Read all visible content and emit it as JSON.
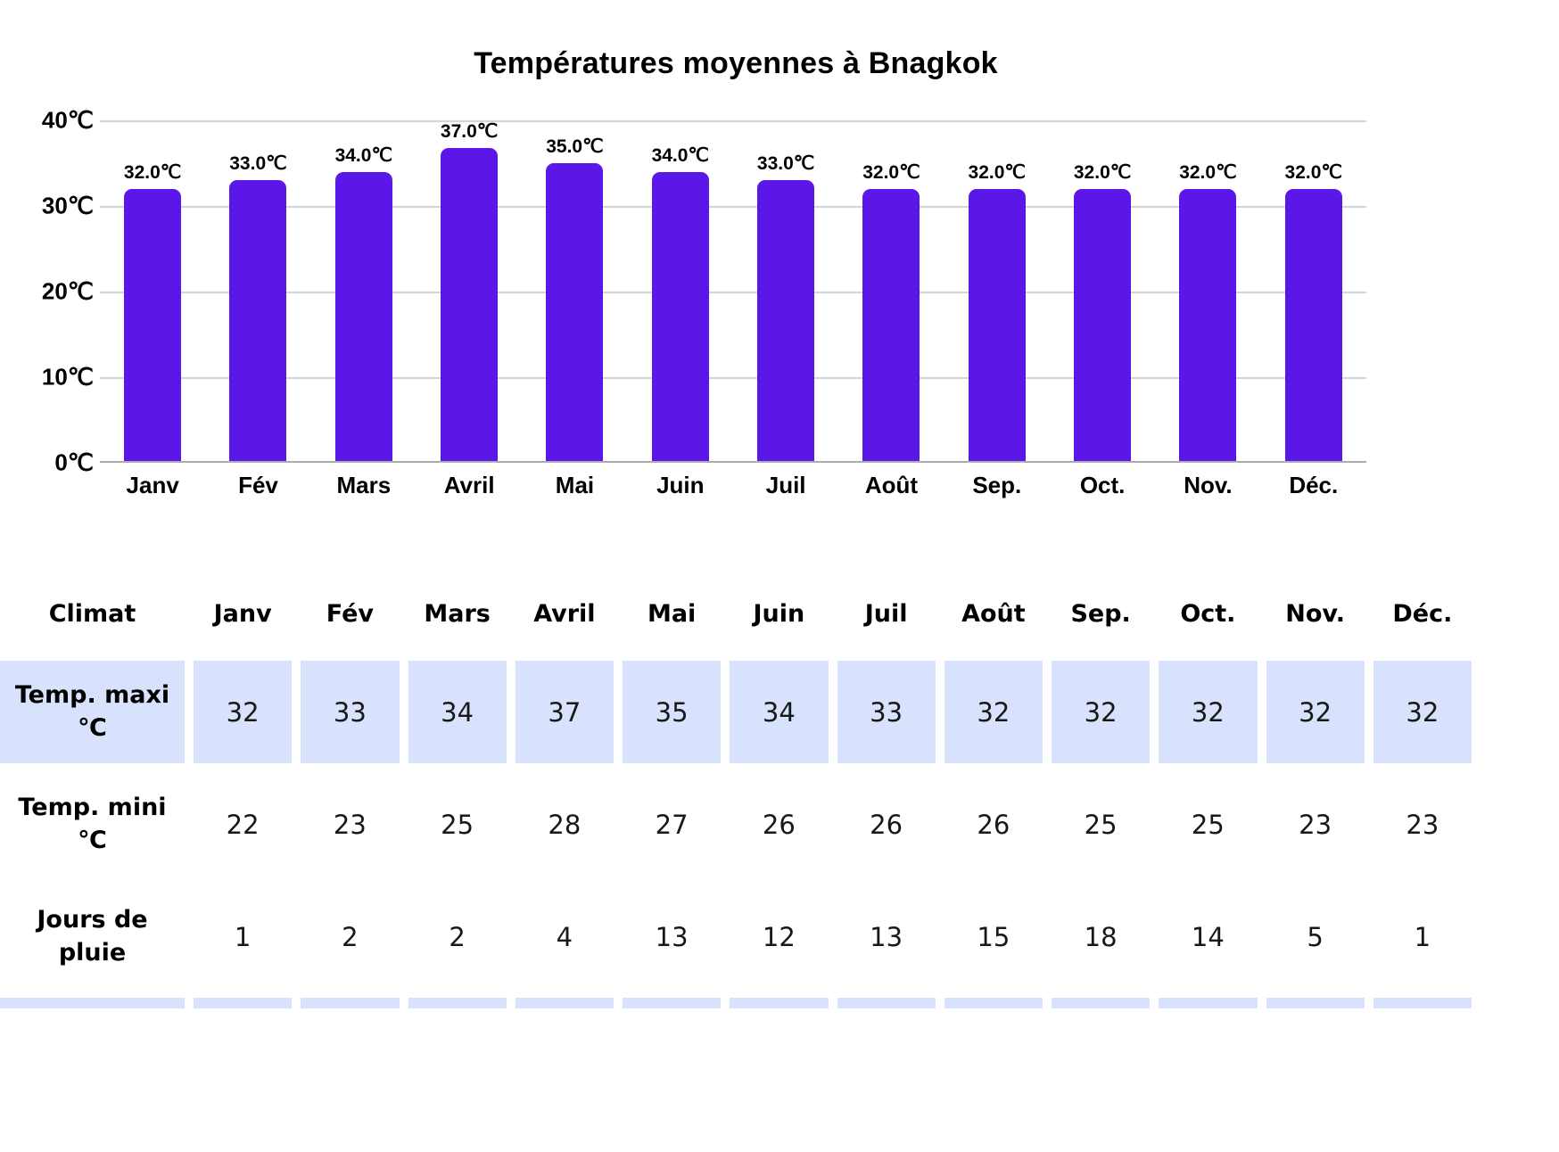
{
  "chart_data": {
    "type": "bar",
    "title": "Températures moyennes à Bnagkok",
    "categories": [
      "Janv",
      "Fév",
      "Mars",
      "Avril",
      "Mai",
      "Juin",
      "Juil",
      "Août",
      "Sep.",
      "Oct.",
      "Nov.",
      "Déc."
    ],
    "values": [
      32,
      33,
      34,
      37,
      35,
      34,
      33,
      32,
      32,
      32,
      32,
      32
    ],
    "bar_labels": [
      "32.0℃",
      "33.0℃",
      "34.0℃",
      "37.0℃",
      "35.0℃",
      "34.0℃",
      "33.0℃",
      "32.0℃",
      "32.0℃",
      "32.0℃",
      "32.0℃",
      "32.0℃"
    ],
    "y_tick_labels": [
      "40℃",
      "30℃",
      "20℃",
      "10℃",
      "0℃"
    ],
    "ylim": [
      0,
      40
    ],
    "xlabel": "",
    "ylabel": "",
    "grid": "horizontal",
    "legend": "none",
    "bar_color": "#5B17E8"
  },
  "table": {
    "corner_label": "Climat",
    "months": [
      "Janv",
      "Fév",
      "Mars",
      "Avril",
      "Mai",
      "Juin",
      "Juil",
      "Août",
      "Sep.",
      "Oct.",
      "Nov.",
      "Déc."
    ],
    "cell_bg": "#D9E2FC",
    "rows": [
      {
        "label": "Temp. maxi\n℃",
        "values": [
          "32",
          "33",
          "34",
          "37",
          "35",
          "34",
          "33",
          "32",
          "32",
          "32",
          "32",
          "32"
        ]
      },
      {
        "label": "Temp. mini\n℃",
        "values": [
          "22",
          "23",
          "25",
          "28",
          "27",
          "26",
          "26",
          "26",
          "25",
          "25",
          "23",
          "23"
        ]
      },
      {
        "label": "Jours de\npluie",
        "values": [
          "1",
          "2",
          "2",
          "4",
          "13",
          "12",
          "13",
          "15",
          "18",
          "14",
          "5",
          "1"
        ]
      }
    ]
  }
}
